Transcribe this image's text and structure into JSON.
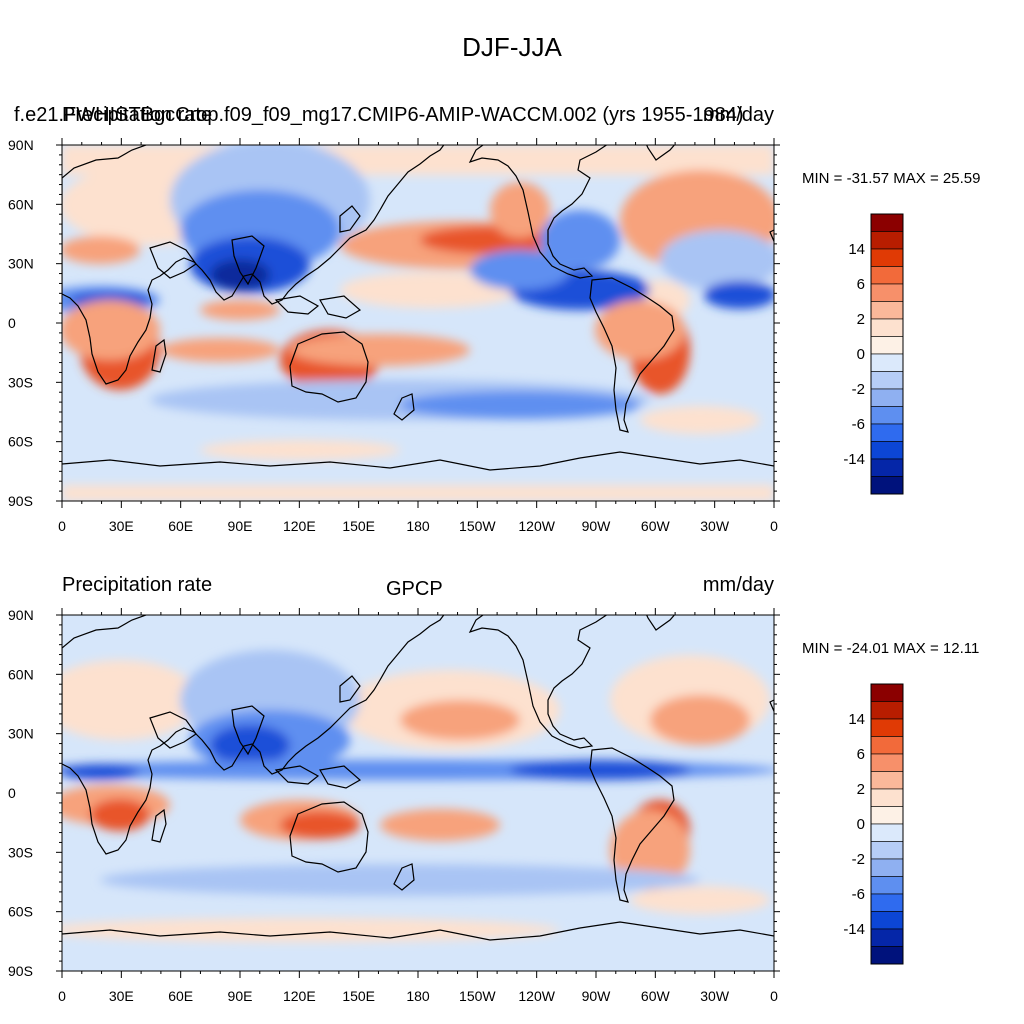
{
  "title": "DJF-JJA",
  "panels": [
    {
      "left_label": "Precipitation rate",
      "center_label": "f.e21.FWHISTBgcCrop.f09_f09_mg17.CMIP6-AMIP-WACCM.002 (yrs 1955-1984)",
      "right_label": "mm/day",
      "min_max": "MIN = -31.57 MAX =  25.59"
    },
    {
      "left_label": "Precipitation rate",
      "center_label": "GPCP",
      "right_label": "mm/day",
      "min_max": "MIN = -24.01 MAX =  12.11"
    }
  ],
  "lat_labels": [
    "90N",
    "60N",
    "30N",
    "0",
    "30S",
    "60S",
    "90S"
  ],
  "lon_labels": [
    "0",
    "30E",
    "60E",
    "90E",
    "120E",
    "150E",
    "180",
    "150W",
    "120W",
    "90W",
    "60W",
    "30W",
    "0"
  ],
  "colorbar": {
    "labels": [
      "14",
      "6",
      "2",
      "0",
      "-2",
      "-6",
      "-14"
    ],
    "colors_top": [
      "#8b0000",
      "#b81d00",
      "#e03a05",
      "#f26a3a",
      "#f7906a",
      "#fab89a",
      "#fde1cf",
      "#fdf1e6"
    ],
    "colors_bottom": [
      "#dbe9fb",
      "#b6cdf6",
      "#8fb0f1",
      "#5e8ff0",
      "#2f6bef",
      "#0c46d6",
      "#0526a8",
      "#00127c"
    ]
  },
  "map_colors": {
    "ocean_base": "#d6e6fa",
    "light_pos": "#fde1cf",
    "mid_pos": "#f7a27c",
    "strong_pos": "#e8542a",
    "light_neg": "#a9c4f4",
    "mid_neg": "#5e8ff0",
    "strong_neg": "#1d4fd8",
    "deep_neg": "#0a2a9c"
  }
}
